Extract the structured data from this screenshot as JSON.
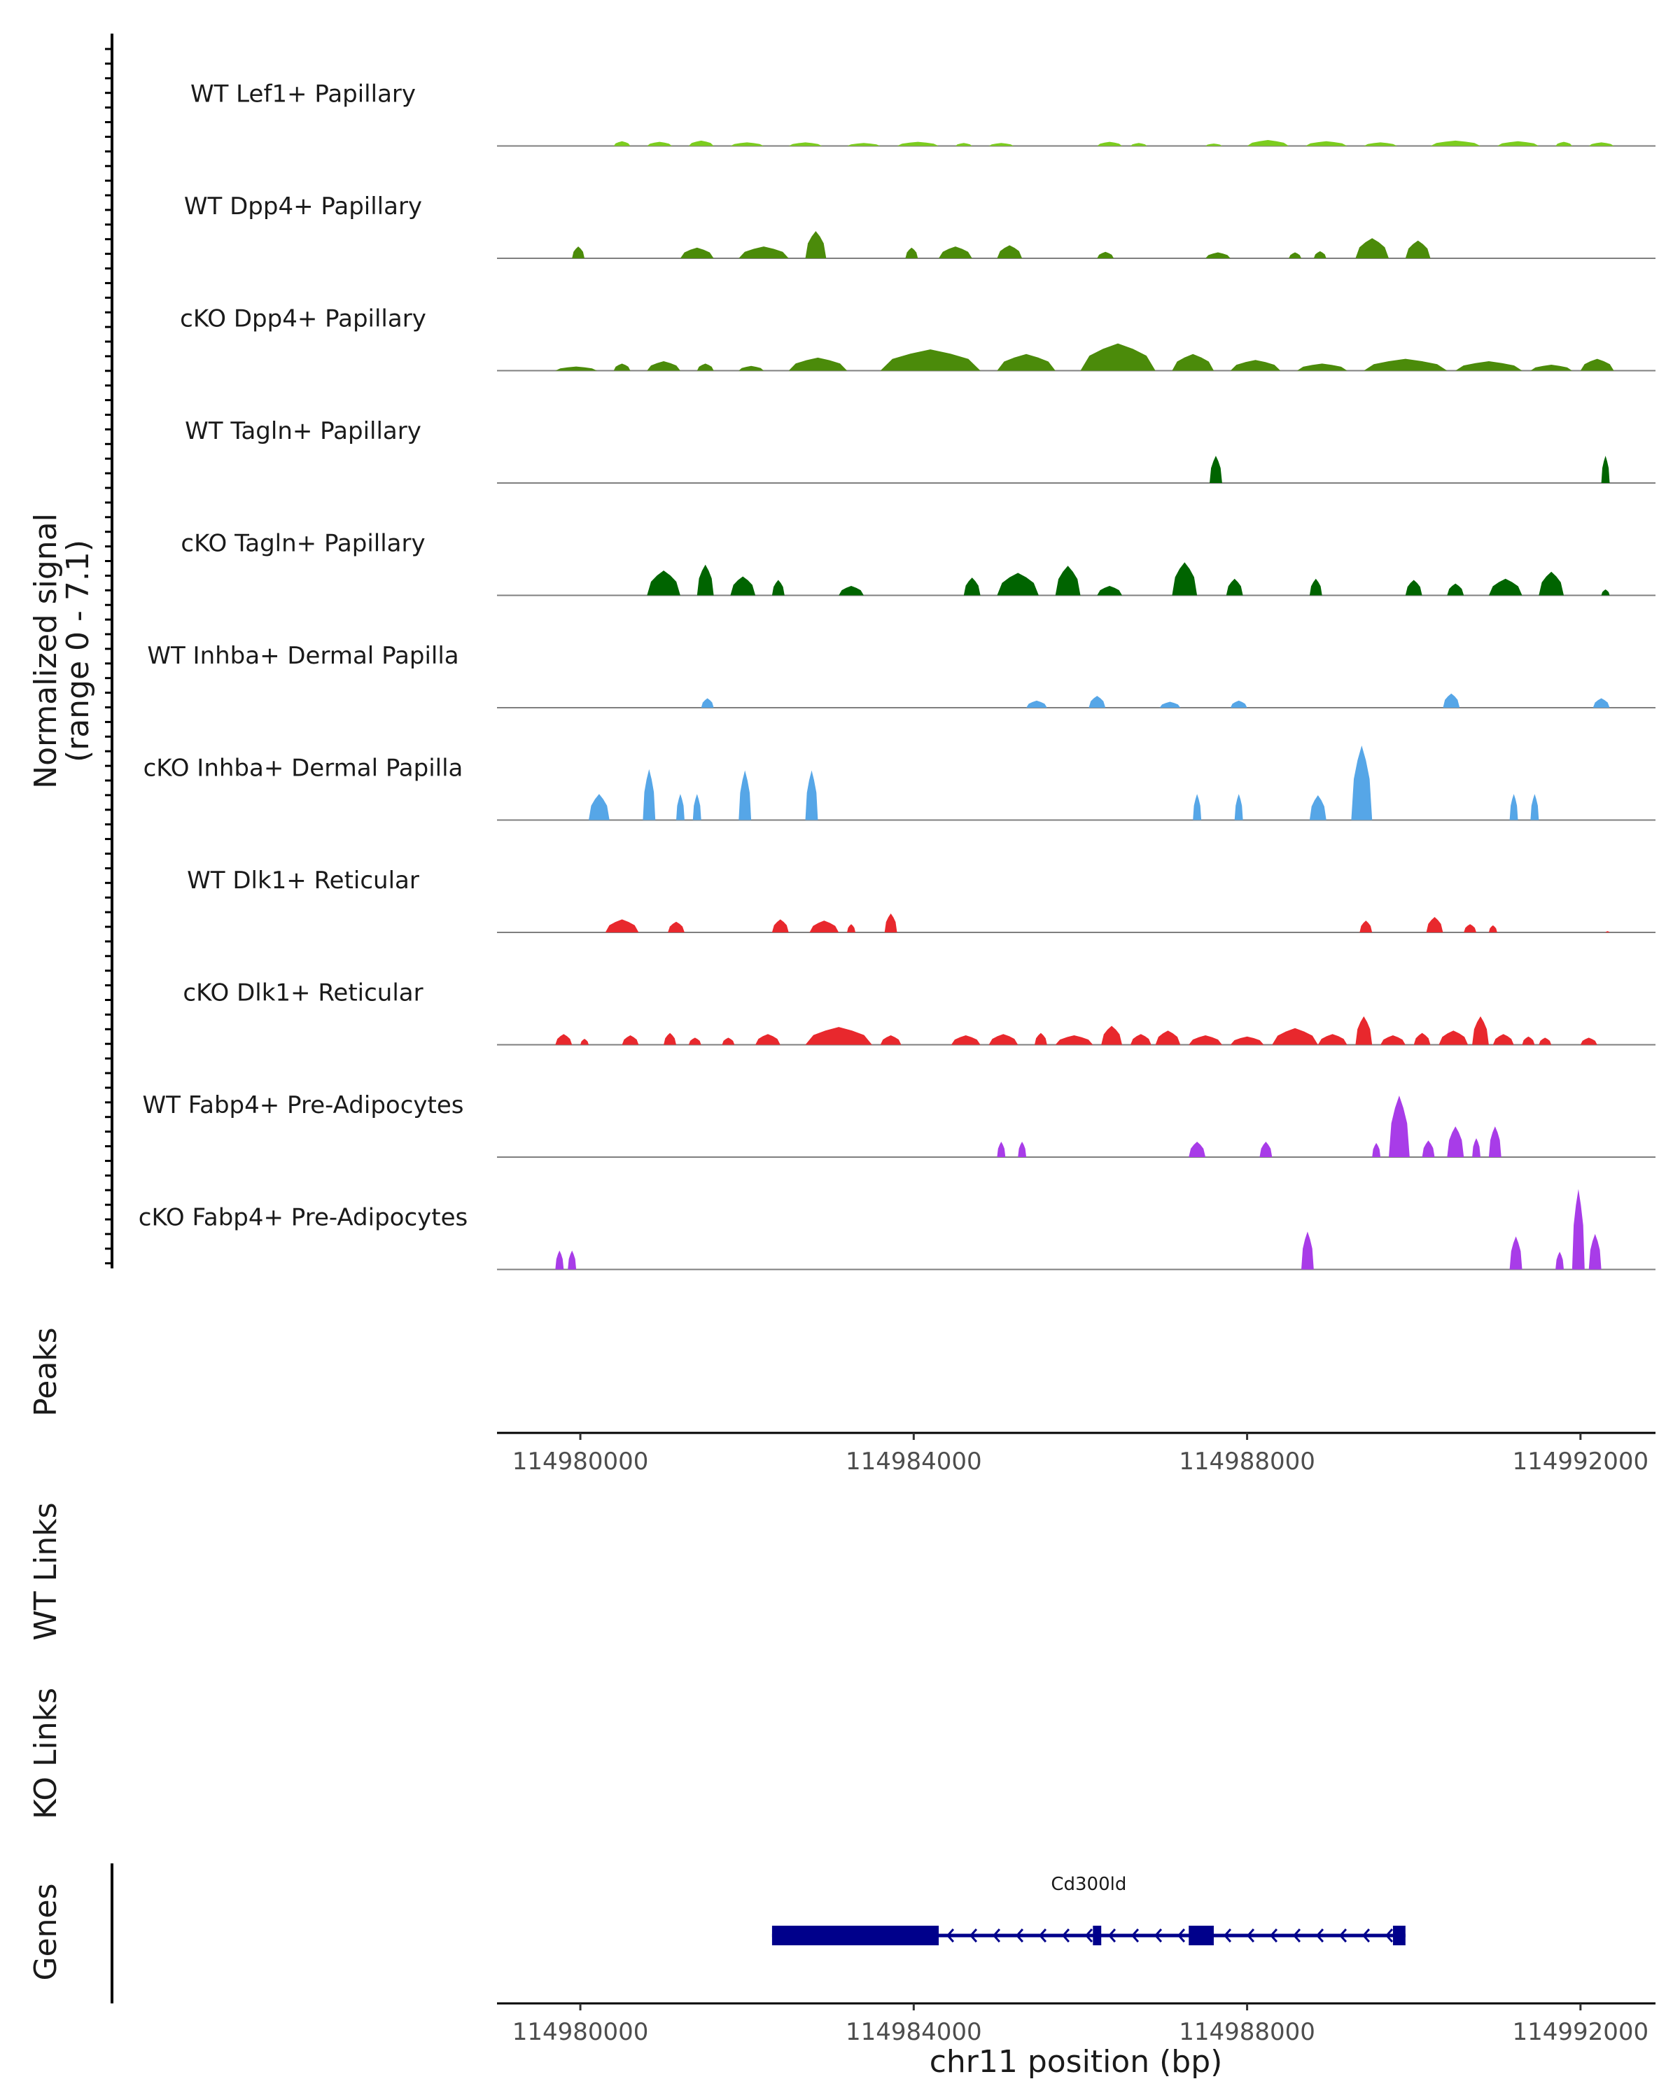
{
  "chart_data": {
    "type": "coverage",
    "region": {
      "chromosome": "chr11",
      "start": 114979000,
      "end": 114992900
    },
    "y_axis_title": "Normalized signal",
    "y_axis_subtitle": "(range 0 - 7.1)",
    "y_range": [
      0,
      7.1
    ],
    "xlabel": "chr11 position (bp)",
    "x_ticks": [
      114980000,
      114984000,
      114988000,
      114992000
    ],
    "x_tick_labels": [
      "114980000",
      "114984000",
      "114988000",
      "114992000"
    ],
    "tracks": [
      {
        "name": "WT Lef1+ Papillary",
        "color": "#7CCD1E",
        "peaks": [
          [
            114980400,
            114980600,
            0.4
          ],
          [
            114980800,
            114981100,
            0.35
          ],
          [
            114981300,
            114981600,
            0.45
          ],
          [
            114981800,
            114982200,
            0.3
          ],
          [
            114982500,
            114982900,
            0.3
          ],
          [
            114983200,
            114983600,
            0.25
          ],
          [
            114983800,
            114984300,
            0.35
          ],
          [
            114984500,
            114984700,
            0.25
          ],
          [
            114984900,
            114985200,
            0.25
          ],
          [
            114986200,
            114986500,
            0.35
          ],
          [
            114986600,
            114986800,
            0.25
          ],
          [
            114987500,
            114987700,
            0.2
          ],
          [
            114988000,
            114988500,
            0.5
          ],
          [
            114988700,
            114989200,
            0.4
          ],
          [
            114989400,
            114989800,
            0.3
          ],
          [
            114990200,
            114990800,
            0.45
          ],
          [
            114991000,
            114991500,
            0.4
          ],
          [
            114991700,
            114991900,
            0.35
          ],
          [
            114992100,
            114992400,
            0.3
          ]
        ]
      },
      {
        "name": "WT Dpp4+ Papillary",
        "color": "#4B8B0A",
        "peaks": [
          [
            114979900,
            114980050,
            1.0
          ],
          [
            114981200,
            114981600,
            0.9
          ],
          [
            114981900,
            114982500,
            1.0
          ],
          [
            114982700,
            114982950,
            2.3
          ],
          [
            114983900,
            114984050,
            0.9
          ],
          [
            114984300,
            114984700,
            1.0
          ],
          [
            114985000,
            114985300,
            1.1
          ],
          [
            114986200,
            114986400,
            0.55
          ],
          [
            114987500,
            114987800,
            0.5
          ],
          [
            114988500,
            114988650,
            0.5
          ],
          [
            114988800,
            114988950,
            0.6
          ],
          [
            114989300,
            114989700,
            1.7
          ],
          [
            114989900,
            114990200,
            1.5
          ]
        ]
      },
      {
        "name": "cKO Dpp4+ Papillary",
        "color": "#4B8B0A",
        "peaks": [
          [
            114979700,
            114980200,
            0.35
          ],
          [
            114980400,
            114980600,
            0.6
          ],
          [
            114980800,
            114981200,
            0.8
          ],
          [
            114981400,
            114981600,
            0.6
          ],
          [
            114981900,
            114982200,
            0.4
          ],
          [
            114982500,
            114983200,
            1.1
          ],
          [
            114983600,
            114984800,
            1.8
          ],
          [
            114985000,
            114985700,
            1.4
          ],
          [
            114986000,
            114986900,
            2.3
          ],
          [
            114987100,
            114987600,
            1.4
          ],
          [
            114987800,
            114988400,
            0.9
          ],
          [
            114988600,
            114989200,
            0.6
          ],
          [
            114989400,
            114990400,
            1.0
          ],
          [
            114990500,
            114991300,
            0.8
          ],
          [
            114991400,
            114991900,
            0.5
          ],
          [
            114992000,
            114992400,
            1.0
          ]
        ]
      },
      {
        "name": "WT Tagln+ Papillary",
        "color": "#006400",
        "peaks": [
          [
            114987550,
            114987700,
            2.3
          ],
          [
            114992250,
            114992350,
            2.3
          ]
        ]
      },
      {
        "name": "cKO Tagln+ Papillary",
        "color": "#006400",
        "peaks": [
          [
            114980800,
            114981200,
            2.1
          ],
          [
            114981400,
            114981600,
            2.6
          ],
          [
            114981800,
            114982100,
            1.6
          ],
          [
            114982300,
            114982450,
            1.3
          ],
          [
            114983100,
            114983400,
            0.8
          ],
          [
            114984600,
            114984800,
            1.5
          ],
          [
            114985000,
            114985500,
            1.9
          ],
          [
            114985700,
            114986000,
            2.5
          ],
          [
            114986200,
            114986500,
            0.8
          ],
          [
            114987100,
            114987400,
            2.8
          ],
          [
            114987750,
            114987950,
            1.4
          ],
          [
            114988750,
            114988900,
            1.4
          ],
          [
            114989900,
            114990100,
            1.3
          ],
          [
            114990400,
            114990600,
            1.0
          ],
          [
            114990900,
            114991300,
            1.4
          ],
          [
            114991500,
            114991800,
            2.0
          ],
          [
            114992250,
            114992350,
            0.5
          ]
        ]
      },
      {
        "name": "WT Inhba+ Dermal Papilla",
        "color": "#56A6E7",
        "peaks": [
          [
            114981450,
            114981600,
            0.8
          ],
          [
            114985350,
            114985600,
            0.6
          ],
          [
            114986100,
            114986300,
            1.0
          ],
          [
            114986950,
            114987200,
            0.5
          ],
          [
            114987800,
            114988000,
            0.6
          ],
          [
            114990350,
            114990550,
            1.2
          ],
          [
            114992150,
            114992350,
            0.8
          ]
        ]
      },
      {
        "name": "cKO Inhba+ Dermal Papilla",
        "color": "#56A6E7",
        "peaks": [
          [
            114980100,
            114980350,
            2.2
          ],
          [
            114980750,
            114980900,
            4.3
          ],
          [
            114981150,
            114981250,
            2.2
          ],
          [
            114981350,
            114981450,
            2.2
          ],
          [
            114981900,
            114982050,
            4.2
          ],
          [
            114982700,
            114982850,
            4.2
          ],
          [
            114987350,
            114987450,
            2.2
          ],
          [
            114987850,
            114987950,
            2.2
          ],
          [
            114988750,
            114988950,
            2.1
          ],
          [
            114989250,
            114989500,
            6.3
          ],
          [
            114991150,
            114991250,
            2.2
          ],
          [
            114991400,
            114991500,
            2.2
          ]
        ]
      },
      {
        "name": "WT Dlk1+ Reticular",
        "color": "#E8282D",
        "peaks": [
          [
            114980300,
            114980700,
            1.1
          ],
          [
            114981050,
            114981250,
            0.9
          ],
          [
            114982300,
            114982500,
            1.1
          ],
          [
            114982750,
            114983100,
            1.0
          ],
          [
            114983200,
            114983300,
            0.7
          ],
          [
            114983650,
            114983800,
            1.6
          ],
          [
            114989350,
            114989500,
            1.0
          ],
          [
            114990150,
            114990350,
            1.3
          ],
          [
            114990600,
            114990750,
            0.7
          ],
          [
            114990900,
            114991000,
            0.6
          ],
          [
            114992300,
            114992350,
            0.1
          ]
        ]
      },
      {
        "name": "cKO Dlk1+ Reticular",
        "color": "#E8282D",
        "peaks": [
          [
            114979700,
            114979900,
            0.9
          ],
          [
            114980000,
            114980100,
            0.5
          ],
          [
            114980500,
            114980700,
            0.8
          ],
          [
            114981000,
            114981150,
            1.0
          ],
          [
            114981300,
            114981450,
            0.6
          ],
          [
            114981700,
            114981850,
            0.6
          ],
          [
            114982100,
            114982400,
            0.9
          ],
          [
            114982700,
            114983500,
            1.5
          ],
          [
            114983600,
            114983850,
            0.8
          ],
          [
            114984450,
            114984800,
            0.8
          ],
          [
            114984900,
            114985250,
            0.9
          ],
          [
            114985450,
            114985600,
            1.0
          ],
          [
            114985700,
            114986150,
            0.8
          ],
          [
            114986250,
            114986500,
            1.6
          ],
          [
            114986600,
            114986850,
            0.9
          ],
          [
            114986900,
            114987200,
            1.2
          ],
          [
            114987300,
            114987700,
            0.8
          ],
          [
            114987800,
            114988200,
            0.7
          ],
          [
            114988300,
            114988850,
            1.4
          ],
          [
            114988850,
            114989200,
            0.9
          ],
          [
            114989300,
            114989500,
            2.4
          ],
          [
            114989600,
            114989900,
            0.8
          ],
          [
            114990000,
            114990200,
            1.0
          ],
          [
            114990300,
            114990650,
            1.2
          ],
          [
            114990700,
            114990900,
            2.4
          ],
          [
            114990950,
            114991200,
            0.9
          ],
          [
            114991300,
            114991450,
            0.7
          ],
          [
            114991500,
            114991650,
            0.6
          ],
          [
            114992000,
            114992200,
            0.6
          ]
        ]
      },
      {
        "name": "WT Fabp4+ Pre-Adipocytes",
        "color": "#A83CE8",
        "peaks": [
          [
            114985000,
            114985100,
            1.3
          ],
          [
            114985250,
            114985350,
            1.3
          ],
          [
            114987300,
            114987500,
            1.3
          ],
          [
            114988150,
            114988300,
            1.3
          ],
          [
            114989500,
            114989600,
            1.2
          ],
          [
            114989700,
            114989950,
            5.2
          ],
          [
            114990100,
            114990250,
            1.4
          ],
          [
            114990400,
            114990600,
            2.6
          ],
          [
            114990700,
            114990800,
            1.6
          ],
          [
            114990900,
            114991050,
            2.6
          ]
        ]
      },
      {
        "name": "cKO Fabp4+ Pre-Adipocytes",
        "color": "#A83CE8",
        "peaks": [
          [
            114979700,
            114979800,
            1.6
          ],
          [
            114979850,
            114979950,
            1.6
          ],
          [
            114988650,
            114988800,
            3.2
          ],
          [
            114991150,
            114991300,
            2.8
          ],
          [
            114991700,
            114991800,
            1.5
          ],
          [
            114991900,
            114992050,
            6.8
          ],
          [
            114992100,
            114992250,
            3.0
          ]
        ]
      }
    ],
    "empty_panels": [
      "Peaks",
      "WT Links",
      "KO Links"
    ],
    "genes_panel": {
      "title": "Genes",
      "gene": {
        "name": "Cd300ld",
        "start": 114982300,
        "end": 114989900,
        "strand": "-",
        "color": "#00008B",
        "exons": [
          [
            114982300,
            114984300
          ],
          [
            114986150,
            114986250
          ],
          [
            114987300,
            114987600
          ],
          [
            114989750,
            114989900
          ]
        ]
      }
    }
  }
}
